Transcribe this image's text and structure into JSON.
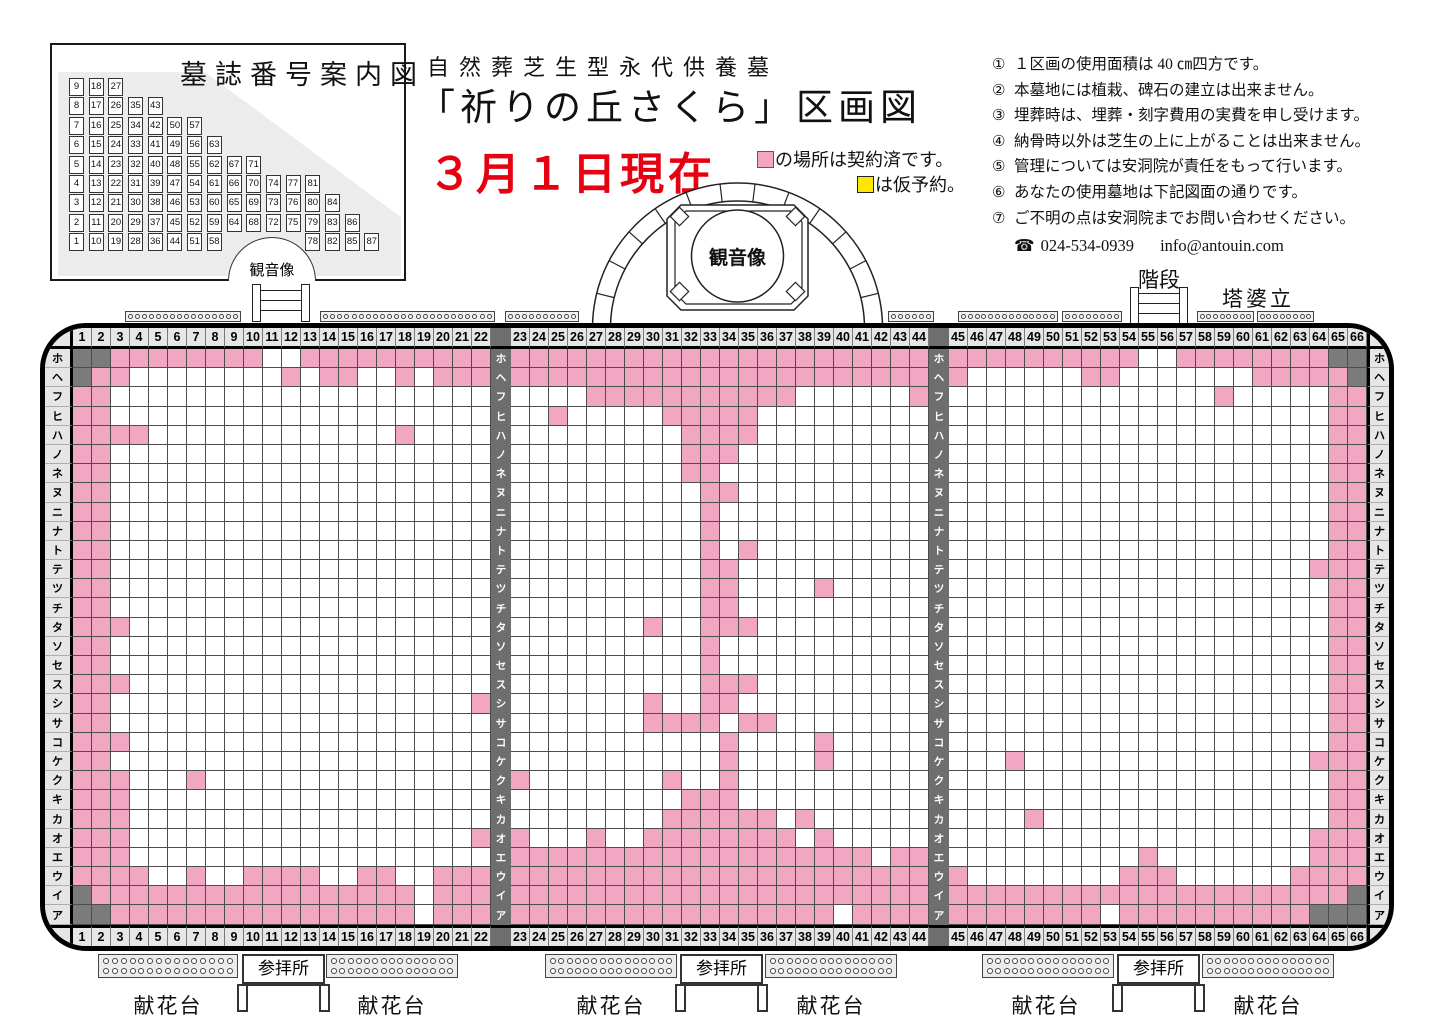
{
  "inset": {
    "title": "墓誌番号案内図",
    "kannon_label": "観音像",
    "rows": [
      [
        9,
        18,
        27,
        null,
        null,
        null,
        null,
        null,
        null,
        null,
        null,
        null,
        null,
        null,
        null,
        null
      ],
      [
        8,
        17,
        26,
        35,
        43,
        null,
        null,
        null,
        null,
        null,
        null,
        null,
        null,
        null,
        null,
        null
      ],
      [
        7,
        16,
        25,
        34,
        42,
        50,
        57,
        null,
        null,
        null,
        null,
        null,
        null,
        null,
        null,
        null
      ],
      [
        6,
        15,
        24,
        33,
        41,
        49,
        56,
        63,
        null,
        null,
        null,
        null,
        null,
        null,
        null,
        null
      ],
      [
        5,
        14,
        23,
        32,
        40,
        48,
        55,
        62,
        67,
        71,
        null,
        null,
        null,
        null,
        null,
        null
      ],
      [
        4,
        13,
        22,
        31,
        39,
        47,
        54,
        61,
        66,
        70,
        74,
        77,
        81,
        null,
        null,
        null
      ],
      [
        3,
        12,
        21,
        30,
        38,
        46,
        53,
        60,
        65,
        69,
        73,
        76,
        80,
        84,
        null,
        null
      ],
      [
        2,
        11,
        20,
        29,
        37,
        45,
        52,
        59,
        64,
        68,
        72,
        75,
        79,
        83,
        86,
        null
      ],
      [
        1,
        10,
        19,
        28,
        36,
        44,
        51,
        58,
        null,
        null,
        null,
        null,
        78,
        82,
        85,
        87
      ]
    ]
  },
  "header": {
    "subtitle": "自然葬芝生型永代供養墓",
    "title": "「祈りの丘さくら」区画図",
    "date_note": "３月１日現在"
  },
  "legend": {
    "contracted_label": "の場所は契約済です。",
    "reserved_label": "は仮予約。",
    "contracted_color": "#F1A7C2",
    "reserved_color": "#FFE800"
  },
  "notes": {
    "items": [
      {
        "marker": "①",
        "text": "１区画の使用面積は 40 ㎝四方です。"
      },
      {
        "marker": "②",
        "text": "本墓地には植栽、碑石の建立は出来ません。"
      },
      {
        "marker": "③",
        "text": "埋葬時は、埋葬・刻字費用の実費を申し受けます。"
      },
      {
        "marker": "④",
        "text": "納骨時以外は芝生の上に上がることは出来ません。"
      },
      {
        "marker": "⑤",
        "text": "管理については安洞院が責任をもって行います。"
      },
      {
        "marker": "⑥",
        "text": "あなたの使用墓地は下記図面の通りです。"
      },
      {
        "marker": "⑦",
        "text": "ご不明の点は安洞院までお問い合わせください。"
      }
    ],
    "phone": "024-534-0939",
    "email": "info@antouin.com"
  },
  "structures": {
    "kannon": "観音像",
    "stairs": "階段",
    "touba": "塔婆立",
    "flower_stand": "献花台",
    "worship": "参拝所"
  },
  "grid": {
    "column_numbers": [
      1,
      2,
      3,
      4,
      5,
      6,
      7,
      8,
      9,
      10,
      11,
      12,
      13,
      14,
      15,
      16,
      17,
      18,
      19,
      20,
      21,
      22,
      23,
      24,
      25,
      26,
      27,
      28,
      29,
      30,
      31,
      32,
      33,
      34,
      35,
      36,
      37,
      38,
      39,
      40,
      41,
      42,
      43,
      44,
      45,
      46,
      47,
      48,
      49,
      50,
      51,
      52,
      53,
      54,
      55,
      56,
      57,
      58,
      59,
      60,
      61,
      62,
      63,
      64,
      65,
      66
    ],
    "row_labels": [
      "ホ",
      "ヘ",
      "フ",
      "ヒ",
      "ハ",
      "ノ",
      "ネ",
      "ヌ",
      "ニ",
      "ナ",
      "ト",
      "テ",
      "ツ",
      "チ",
      "タ",
      "ソ",
      "セ",
      "ス",
      "シ",
      "サ",
      "コ",
      "ケ",
      "ク",
      "キ",
      "カ",
      "オ",
      "エ",
      "ウ",
      "イ",
      "ア"
    ],
    "cells": [
      "221111111100111111111111111111111111111111111111111111001111111122",
      "211000000001011001011111111111111111111111111000000110000000111112",
      "110000000000000000000000001111111111100000010000000000000010000011",
      "110000000000000000000000100000111110000000000000000000000000000011",
      "111100000000000001000000000000011110000000000000000000000000000011",
      "110000000000000000000000000000011100000000000000000000000000000011",
      "110000000000000000000000000000011000000000000000000000000000000011",
      "110000000000000000000000000000001100000000000000000000000000000011",
      "110000000000000000000000000000001000000000000000000000000000000011",
      "110000000000000000000000000000001000000000000000000000000000000011",
      "110000000000000000000000000000001010000000000000000000000000000011",
      "110000000000000000000000000000001100000000000000000000000000000111",
      "110000000000000000000000000000001100001000000000000000000000000011",
      "110000000000000000000000000000001100000000000000000000000000000011",
      "111000000000000000000000000001001110000000000000000000000000000011",
      "110000000000000000000000000000001000000000000000000000000000000011",
      "110000000000000000000000000000001000000000000000000000000000000011",
      "111000000000000000000000000000001110000000000000000000000000000011",
      "110000000000000000000100000001001100000000000000000000000000000011",
      "110000000000000000000000000001111011000000000000000000000000000011",
      "111000000000000000000000000000000100001000000000000000000000000011",
      "110000000000000000000000000000000100001000000001000000000000000111",
      "111000100000000000000010000000100100000000000000000000000000000011",
      "111000000000000000000000000000011100000000000000000000000000000011",
      "111000000000000000000000000000111111010000000000100000000000000011",
      "111000000000000000000110001001111111101000000000000000000000000111",
      "111000000000000000000011111111111111111110110000000000100000000111",
      "111100100111100110011111111111111111111111111000000001110000001111",
      "211111111111111111011111111111111111111111111111111111111111111112",
      "221111111111111111011111111111111111111011111111111101111111111222"
    ],
    "colors": {
      "contracted": "#F1A7C2",
      "empty": "#FFFFFF",
      "corner": "#7B7B7B",
      "label_bg": "#E6E6E6",
      "separator_bg": "#6E6E6E"
    }
  }
}
